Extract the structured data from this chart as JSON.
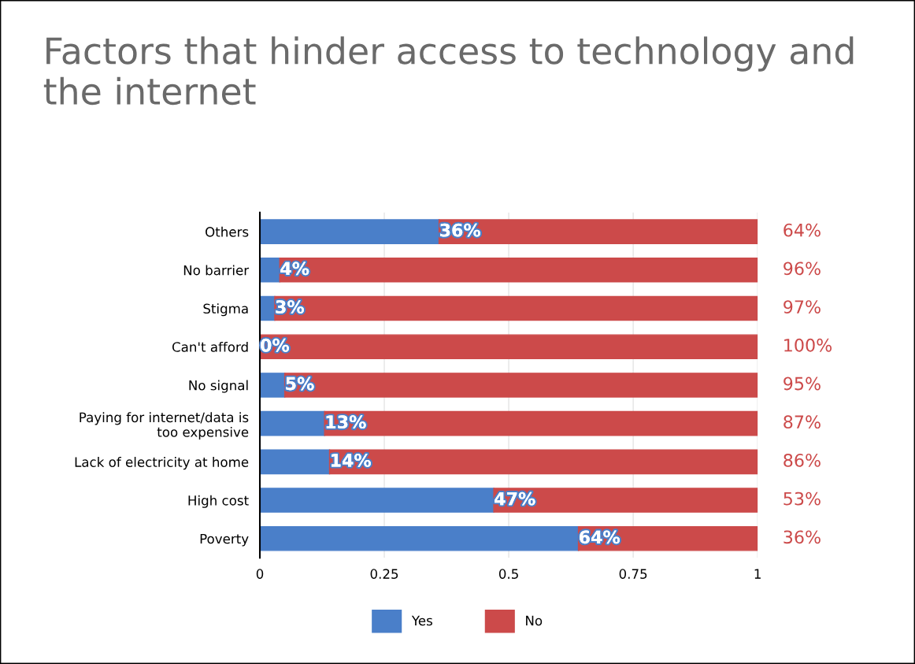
{
  "chart_data": {
    "type": "bar",
    "orientation": "horizontal",
    "stacked": true,
    "title": "Factors that hinder access to technology and the internet",
    "categories": [
      "Others",
      "No barrier",
      "Stigma",
      "Can't afford",
      "No signal",
      "Paying for internet/data is too expensive",
      "Lack of electricity at home",
      "High cost",
      "Poverty"
    ],
    "series": [
      {
        "name": "Yes",
        "color": "#4a7fc9",
        "values": [
          0.36,
          0.04,
          0.03,
          0.0,
          0.05,
          0.13,
          0.14,
          0.47,
          0.64
        ],
        "value_labels": [
          "36%",
          "4%",
          "3%",
          "0%",
          "5%",
          "13%",
          "14%",
          "47%",
          "64%"
        ]
      },
      {
        "name": "No",
        "color": "#cc4a4a",
        "values": [
          0.64,
          0.96,
          0.97,
          1.0,
          0.95,
          0.87,
          0.86,
          0.53,
          0.36
        ],
        "value_labels": [
          "64%",
          "96%",
          "97%",
          "100%",
          "95%",
          "87%",
          "86%",
          "53%",
          "36%"
        ]
      }
    ],
    "xlim": [
      0,
      1
    ],
    "xticks": [
      0,
      0.25,
      0.5,
      0.75,
      1
    ],
    "grid": "x",
    "legend": "bottom"
  }
}
